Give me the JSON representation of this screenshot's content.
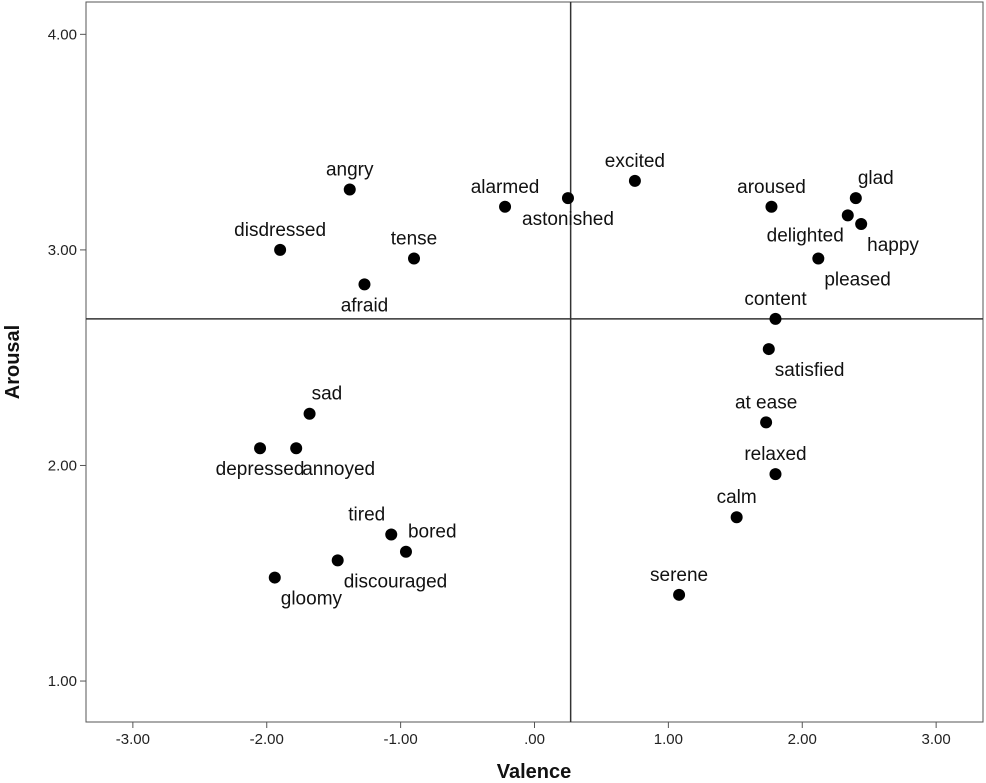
{
  "chart_data": {
    "type": "scatter",
    "title": "",
    "xlabel": "Valence",
    "ylabel": "Arousal",
    "xlim": [
      -3.35,
      3.35
    ],
    "ylim": [
      0.81,
      4.15
    ],
    "x_ticks": [
      -3,
      -2,
      -1,
      0,
      1,
      2,
      3
    ],
    "x_tick_labels": [
      "-3.00",
      "-2.00",
      "-1.00",
      ".00",
      "1.00",
      "2.00",
      "3.00"
    ],
    "y_ticks": [
      1,
      2,
      3,
      4
    ],
    "y_tick_labels": [
      "1.00",
      "2.00",
      "3.00",
      "4.00"
    ],
    "reference_lines": {
      "x": 0.27,
      "y": 2.68
    },
    "points": [
      {
        "label": "angry",
        "x": -1.38,
        "y": 3.28,
        "label_pos": "above"
      },
      {
        "label": "disdressed",
        "x": -1.9,
        "y": 3.0,
        "label_pos": "above"
      },
      {
        "label": "tense",
        "x": -0.9,
        "y": 2.96,
        "label_pos": "above"
      },
      {
        "label": "afraid",
        "x": -1.27,
        "y": 2.84,
        "label_pos": "below"
      },
      {
        "label": "alarmed",
        "x": -0.22,
        "y": 3.2,
        "label_pos": "above"
      },
      {
        "label": "astonished",
        "x": 0.25,
        "y": 3.24,
        "label_pos": "below"
      },
      {
        "label": "excited",
        "x": 0.75,
        "y": 3.32,
        "label_pos": "above"
      },
      {
        "label": "aroused",
        "x": 1.77,
        "y": 3.2,
        "label_pos": "above"
      },
      {
        "label": "glad",
        "x": 2.4,
        "y": 3.24,
        "label_pos": "above-right"
      },
      {
        "label": "delighted",
        "x": 2.34,
        "y": 3.16,
        "label_pos": "below-left"
      },
      {
        "label": "happy",
        "x": 2.44,
        "y": 3.12,
        "label_pos": "below-right"
      },
      {
        "label": "pleased",
        "x": 2.12,
        "y": 2.96,
        "label_pos": "below-right"
      },
      {
        "label": "content",
        "x": 1.8,
        "y": 2.68,
        "label_pos": "above"
      },
      {
        "label": "satisfied",
        "x": 1.75,
        "y": 2.54,
        "label_pos": "below-right"
      },
      {
        "label": "sad",
        "x": -1.68,
        "y": 2.24,
        "label_pos": "above-right"
      },
      {
        "label": "depressed",
        "x": -2.05,
        "y": 2.08,
        "label_pos": "below"
      },
      {
        "label": "annoyed",
        "x": -1.78,
        "y": 2.08,
        "label_pos": "below-right"
      },
      {
        "label": "at ease",
        "x": 1.73,
        "y": 2.2,
        "label_pos": "above"
      },
      {
        "label": "relaxed",
        "x": 1.8,
        "y": 1.96,
        "label_pos": "above"
      },
      {
        "label": "calm",
        "x": 1.51,
        "y": 1.76,
        "label_pos": "above"
      },
      {
        "label": "tired",
        "x": -1.07,
        "y": 1.68,
        "label_pos": "above-left"
      },
      {
        "label": "bored",
        "x": -0.96,
        "y": 1.6,
        "label_pos": "above-right"
      },
      {
        "label": "discouraged",
        "x": -1.47,
        "y": 1.56,
        "label_pos": "below-right"
      },
      {
        "label": "gloomy",
        "x": -1.94,
        "y": 1.48,
        "label_pos": "below-right"
      },
      {
        "label": "serene",
        "x": 1.08,
        "y": 1.4,
        "label_pos": "above"
      }
    ]
  }
}
